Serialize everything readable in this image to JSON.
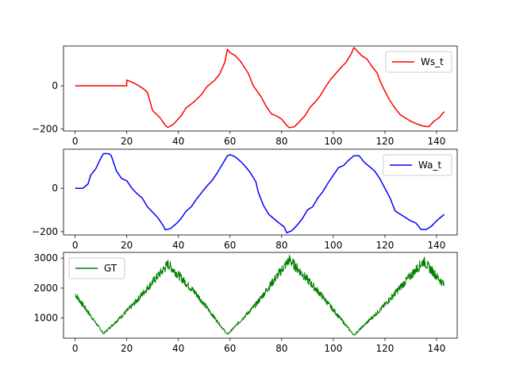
{
  "chart_data": [
    {
      "type": "line",
      "series": [
        {
          "name": "Ws_t",
          "color": "#ff0000",
          "x_range": [
            0,
            143
          ]
        }
      ],
      "xlim": [
        -4.5,
        148
      ],
      "ylim": [
        -210,
        185
      ],
      "xticks": [
        0,
        20,
        40,
        60,
        80,
        100,
        120,
        140
      ],
      "yticks": [
        -200,
        0
      ],
      "legend": "top-right",
      "points": [
        [
          0,
          0
        ],
        [
          20,
          0
        ],
        [
          20,
          27
        ],
        [
          23,
          12
        ],
        [
          26,
          -10
        ],
        [
          28,
          -30
        ],
        [
          30,
          -115
        ],
        [
          33,
          -150
        ],
        [
          35,
          -185
        ],
        [
          36,
          -193
        ],
        [
          38,
          -180
        ],
        [
          41,
          -140
        ],
        [
          43,
          -103
        ],
        [
          46,
          -75
        ],
        [
          49,
          -40
        ],
        [
          51,
          -5
        ],
        [
          54,
          25
        ],
        [
          56,
          55
        ],
        [
          58,
          110
        ],
        [
          59,
          170
        ],
        [
          60,
          155
        ],
        [
          62,
          140
        ],
        [
          64,
          115
        ],
        [
          67,
          60
        ],
        [
          69,
          0
        ],
        [
          72,
          -50
        ],
        [
          74,
          -95
        ],
        [
          76,
          -130
        ],
        [
          78,
          -140
        ],
        [
          80,
          -155
        ],
        [
          82,
          -185
        ],
        [
          83,
          -195
        ],
        [
          85,
          -190
        ],
        [
          87,
          -165
        ],
        [
          89,
          -140
        ],
        [
          91,
          -100
        ],
        [
          93,
          -75
        ],
        [
          95,
          -45
        ],
        [
          97,
          -5
        ],
        [
          99,
          30
        ],
        [
          101,
          58
        ],
        [
          103,
          85
        ],
        [
          105,
          110
        ],
        [
          107,
          150
        ],
        [
          108,
          178
        ],
        [
          109,
          165
        ],
        [
          111,
          140
        ],
        [
          113,
          125
        ],
        [
          115,
          90
        ],
        [
          117,
          60
        ],
        [
          118,
          25
        ],
        [
          120,
          -25
        ],
        [
          122,
          -70
        ],
        [
          124,
          -105
        ],
        [
          126,
          -135
        ],
        [
          128,
          -150
        ],
        [
          130,
          -165
        ],
        [
          133,
          -180
        ],
        [
          135,
          -188
        ],
        [
          137,
          -190
        ],
        [
          139,
          -165
        ],
        [
          141,
          -148
        ],
        [
          143,
          -120
        ]
      ]
    },
    {
      "type": "line",
      "series": [
        {
          "name": "Wa_t",
          "color": "#0000ff",
          "x_range": [
            0,
            143
          ]
        }
      ],
      "xlim": [
        -4.5,
        148
      ],
      "ylim": [
        -215,
        180
      ],
      "xticks": [
        0,
        20,
        40,
        60,
        80,
        100,
        120,
        140
      ],
      "yticks": [
        -200,
        0
      ],
      "legend": "top-right",
      "points": [
        [
          0,
          0
        ],
        [
          3,
          0
        ],
        [
          5,
          20
        ],
        [
          6,
          60
        ],
        [
          8,
          90
        ],
        [
          10,
          140
        ],
        [
          11,
          160
        ],
        [
          13,
          160
        ],
        [
          14,
          150
        ],
        [
          16,
          80
        ],
        [
          18,
          45
        ],
        [
          20,
          35
        ],
        [
          22,
          0
        ],
        [
          24,
          -25
        ],
        [
          26,
          -45
        ],
        [
          28,
          -85
        ],
        [
          30,
          -110
        ],
        [
          32,
          -135
        ],
        [
          34,
          -170
        ],
        [
          35,
          -192
        ],
        [
          37,
          -185
        ],
        [
          39,
          -165
        ],
        [
          41,
          -140
        ],
        [
          43,
          -105
        ],
        [
          45,
          -85
        ],
        [
          47,
          -50
        ],
        [
          49,
          -20
        ],
        [
          51,
          10
        ],
        [
          53,
          35
        ],
        [
          55,
          70
        ],
        [
          57,
          110
        ],
        [
          59,
          150
        ],
        [
          60,
          155
        ],
        [
          62,
          145
        ],
        [
          64,
          125
        ],
        [
          66,
          100
        ],
        [
          68,
          70
        ],
        [
          70,
          30
        ],
        [
          71,
          -20
        ],
        [
          73,
          -80
        ],
        [
          75,
          -120
        ],
        [
          77,
          -140
        ],
        [
          79,
          -160
        ],
        [
          81,
          -178
        ],
        [
          82,
          -205
        ],
        [
          84,
          -195
        ],
        [
          86,
          -170
        ],
        [
          88,
          -140
        ],
        [
          90,
          -100
        ],
        [
          92,
          -85
        ],
        [
          94,
          -45
        ],
        [
          96,
          -15
        ],
        [
          98,
          25
        ],
        [
          100,
          60
        ],
        [
          102,
          95
        ],
        [
          104,
          105
        ],
        [
          106,
          130
        ],
        [
          108,
          150
        ],
        [
          110,
          150
        ],
        [
          112,
          120
        ],
        [
          114,
          100
        ],
        [
          116,
          80
        ],
        [
          118,
          45
        ],
        [
          120,
          0
        ],
        [
          122,
          -45
        ],
        [
          124,
          -105
        ],
        [
          126,
          -120
        ],
        [
          128,
          -135
        ],
        [
          130,
          -150
        ],
        [
          132,
          -160
        ],
        [
          134,
          -190
        ],
        [
          136,
          -190
        ],
        [
          138,
          -175
        ],
        [
          140,
          -150
        ],
        [
          142,
          -130
        ],
        [
          143,
          -120
        ]
      ]
    },
    {
      "type": "line",
      "series": [
        {
          "name": "GT",
          "color": "#008000",
          "x_range": [
            0,
            143
          ]
        }
      ],
      "xlim": [
        -4.5,
        148
      ],
      "ylim": [
        330,
        3190
      ],
      "xticks": [
        0,
        20,
        40,
        60,
        80,
        100,
        120,
        140
      ],
      "yticks": [
        1000,
        2000,
        3000
      ],
      "legend": "top-left",
      "points": [
        [
          0,
          1800
        ],
        [
          11,
          480
        ],
        [
          22,
          1400
        ],
        [
          36,
          2800
        ],
        [
          47,
          1800
        ],
        [
          59,
          450
        ],
        [
          70,
          1450
        ],
        [
          83,
          2950
        ],
        [
          95,
          1800
        ],
        [
          108,
          430
        ],
        [
          119,
          1350
        ],
        [
          135,
          2900
        ],
        [
          143,
          2100
        ]
      ]
    }
  ]
}
